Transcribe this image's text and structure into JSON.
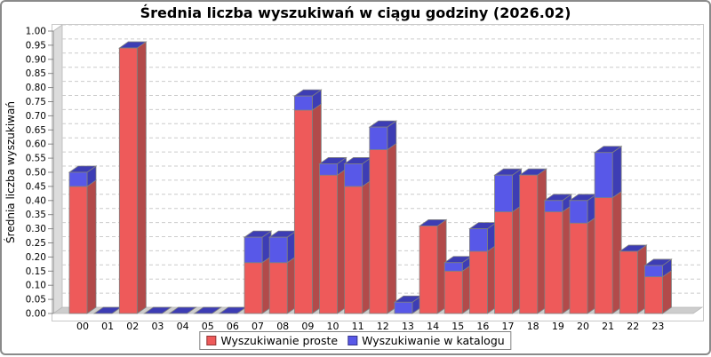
{
  "chart_data": {
    "type": "bar",
    "stacked": true,
    "style": "3d-stacked-bars",
    "title": "Średnia liczba wyszukiwań w ciągu godziny (2026.02)",
    "xlabel": "",
    "ylabel": "Średnia liczba wyszukiwań",
    "ylim": [
      0.0,
      1.0
    ],
    "ytick_step": 0.05,
    "grid": "horizontal-dashed",
    "legend_position": "bottom",
    "categories": [
      "00",
      "01",
      "02",
      "03",
      "04",
      "05",
      "06",
      "07",
      "08",
      "09",
      "10",
      "11",
      "12",
      "13",
      "14",
      "15",
      "16",
      "17",
      "18",
      "19",
      "20",
      "21",
      "22",
      "23"
    ],
    "series": [
      {
        "name": "Wyszukiwanie proste",
        "color": "#ee5a5a",
        "color_dark": "#b24a4a",
        "values": [
          0.45,
          0.0,
          0.94,
          0.0,
          0.0,
          0.0,
          0.0,
          0.18,
          0.18,
          0.72,
          0.49,
          0.45,
          0.58,
          0.0,
          0.31,
          0.15,
          0.22,
          0.36,
          0.49,
          0.36,
          0.32,
          0.41,
          0.22,
          0.13
        ]
      },
      {
        "name": "Wyszukiwanie w katalogu",
        "color": "#5858e8",
        "color_dark": "#3d3db4",
        "values": [
          0.05,
          0.0,
          0.0,
          0.0,
          0.0,
          0.0,
          0.0,
          0.09,
          0.09,
          0.05,
          0.04,
          0.08,
          0.08,
          0.04,
          0.0,
          0.03,
          0.08,
          0.13,
          0.0,
          0.04,
          0.08,
          0.16,
          0.0,
          0.04
        ]
      }
    ],
    "colors": {
      "wall": "#dcdcdc",
      "floor": "#cdcdcd",
      "gridline": "#cccccc",
      "plot_border": "#c8c8c8",
      "outline": "#808080",
      "axis": "#888888",
      "frame_border": "#8a8a8a",
      "text": "#000000"
    }
  }
}
